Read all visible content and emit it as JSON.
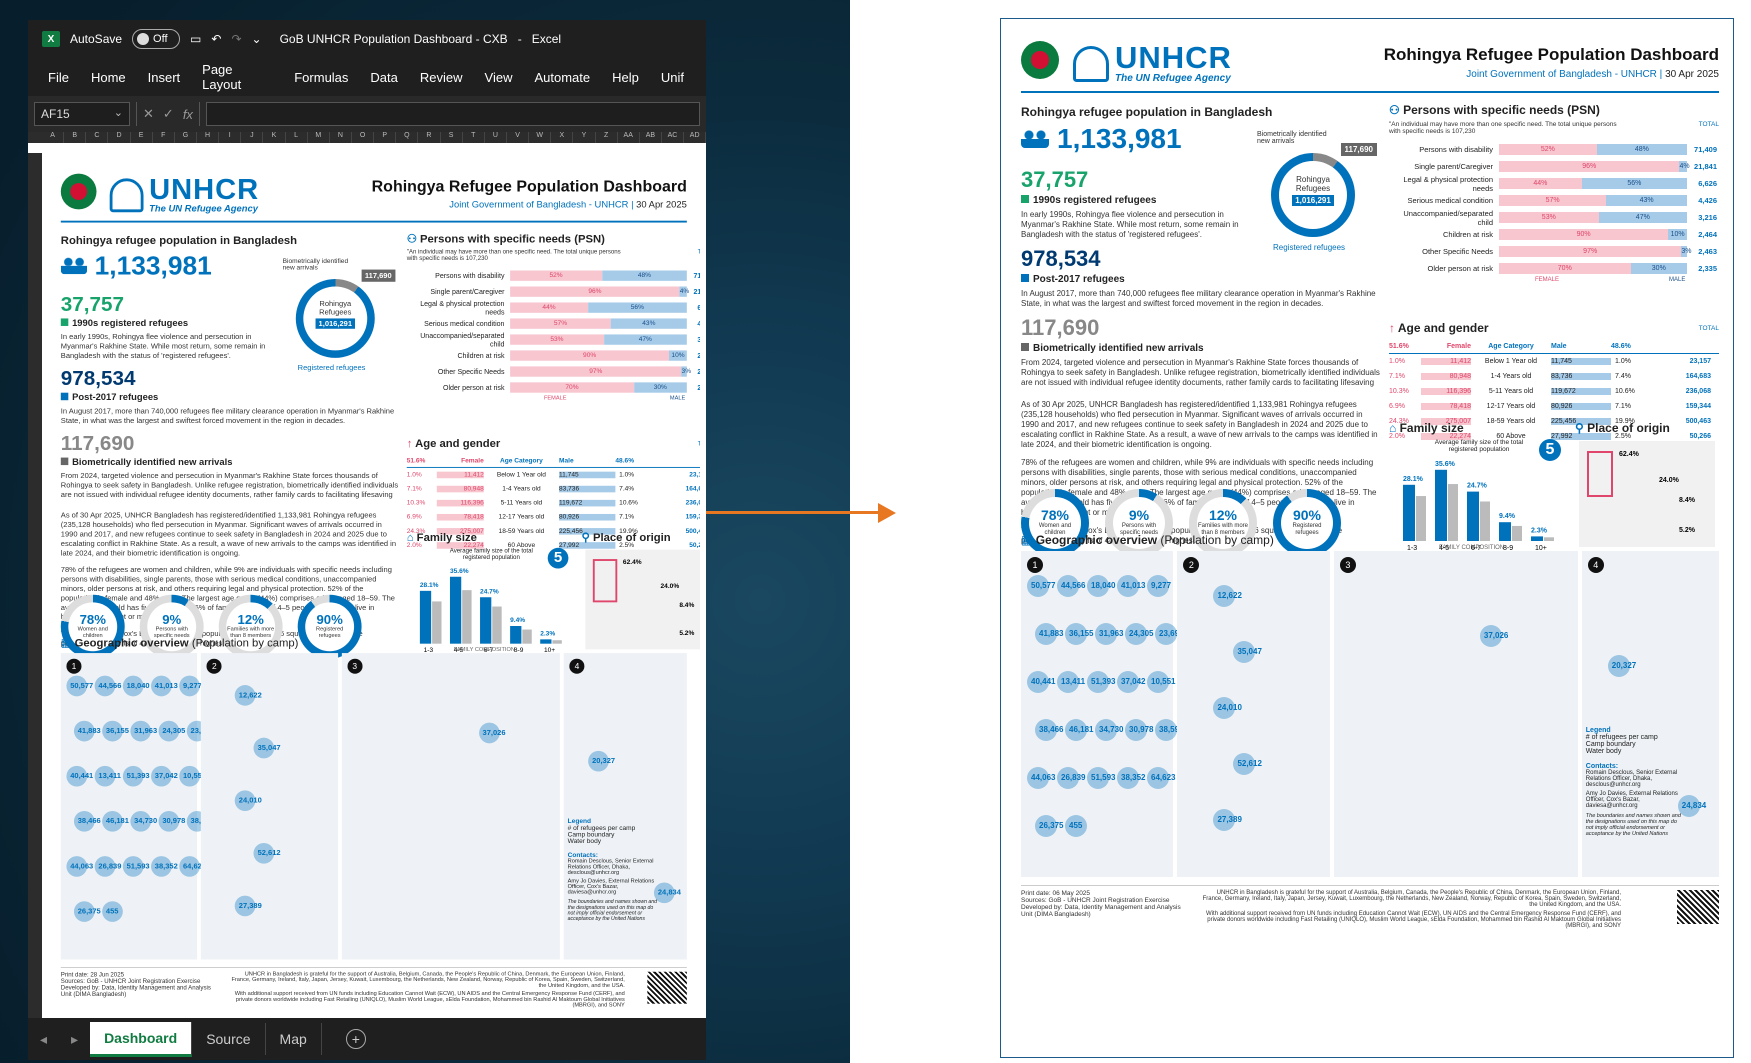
{
  "excel": {
    "app_icon": "excel-icon",
    "autosave_label": "AutoSave",
    "autosave_state": "Off",
    "doc_title": "GoB UNHCR Population Dashboard - CXB",
    "app_name": "Excel",
    "menu": [
      "File",
      "Home",
      "Insert",
      "Page Layout",
      "Formulas",
      "Data",
      "Review",
      "View",
      "Automate",
      "Help",
      "Unif"
    ],
    "name_box": "AF15",
    "fx": "fx",
    "columns": [
      "A",
      "B",
      "C",
      "D",
      "E",
      "F",
      "G",
      "H",
      "I",
      "J",
      "K",
      "L",
      "M",
      "N",
      "O",
      "P",
      "Q",
      "R",
      "S",
      "T",
      "U",
      "V",
      "W",
      "X",
      "Y",
      "Z",
      "AA",
      "AB",
      "AC",
      "AD"
    ],
    "tabs": [
      "Dashboard",
      "Source",
      "Map"
    ],
    "active_tab": "Dashboard"
  },
  "dash": {
    "org": "UNHCR",
    "org_sub": "The UN Refugee Agency",
    "title": "Rohingya Refugee Population Dashboard",
    "subtitle": "Joint Government of Bangladesh - UNHCR",
    "date": "30 Apr 2025",
    "pop_heading": "Rohingya refugee population in Bangladesh",
    "total": "1,133,981",
    "n1990": "37,757",
    "n1990_label": "1990s registered refugees",
    "n1990_text": "In early 1990s, Rohingya flee violence and persecution in Myanmar's Rakhine State. While most return, some remain in Bangladesh with the status of 'registered refugees'.",
    "n2017": "978,534",
    "n2017_label": "Post-2017 refugees",
    "n2017_text": "In August 2017, more than 740,000 refugees flee military clearance operation in Myanmar's Rakhine State, in what was the largest and swiftest forced movement in the region in decades.",
    "nnew": "117,690",
    "nnew_label": "Biometrically identified new arrivals",
    "nnew_text": "From 2024, targeted violence and persecution in Myanmar's Rakhine State forces thousands of Rohingya to seek safety in Bangladesh. Unlike refugee registration, biometrically identified individuals are not issued with individual refugee identity documents, rather family cards to facilitating lifesaving",
    "para1": "As of 30 Apr 2025, UNHCR Bangladesh has registered/identified 1,133,981 Rohingya refugees (235,128 households) who fled persecution in Myanmar. Significant waves of arrivals occurred in 1990 and 2017, and new refugees continue to seek safety in Bangladesh in 2024 and 2025 due to escalating conflict in Rakhine State. As a result, a wave of new arrivals to the camps was identified in late 2024, and their biometric identification is ongoing.",
    "para2": "78% of the refugees are women and children, while 9% are individuals with specific needs including persons with disabilities, single parents, those with serious medical conditions, unaccompanied minors, older persons at risk, and others requiring legal and physical protection. 52% of the population is female and 48% male. The largest age group (44%) comprises adults aged 18–59. The average household has five members: 36% of families consist of 4–5 people, while 12% live in households of eight or more.",
    "para3": "The 33 camps in Cox's Bazar are densely populated, covering 23.6 square kilometers. The population density is of 46,000 one of the highest in the world.",
    "donut_label": "Biometrically identified new arrivals",
    "donut_badge": "117,690",
    "donut_center1": "Rohingya",
    "donut_center2": "Refugees",
    "donut_center_num": "1,016,291",
    "donut_caption": "Registered refugees",
    "psn_heading": "Persons with specific needs (PSN)",
    "psn_note": "\"An individual may have more than one specific need. The total unique persons with specific needs is 107,230",
    "psn_total_hdr": "TOTAL",
    "psn_female": "FEMALE",
    "psn_male": "MALE",
    "psn": [
      {
        "label": "Persons with disability",
        "f": "52%",
        "m": "48%",
        "fv": 52,
        "total": "71,409"
      },
      {
        "label": "Single parent/Caregiver",
        "f": "96%",
        "m": "4%",
        "fv": 96,
        "total": "21,841"
      },
      {
        "label": "Legal & physical protection needs",
        "f": "44%",
        "m": "56%",
        "fv": 44,
        "total": "6,626"
      },
      {
        "label": "Serious medical condition",
        "f": "57%",
        "m": "43%",
        "fv": 57,
        "total": "4,426"
      },
      {
        "label": "Unaccompanied/separated child",
        "f": "53%",
        "m": "47%",
        "fv": 53,
        "total": "3,216"
      },
      {
        "label": "Children at risk",
        "f": "90%",
        "m": "10%",
        "fv": 90,
        "total": "2,464"
      },
      {
        "label": "Other Specific Needs",
        "f": "97%",
        "m": "3%",
        "fv": 97,
        "total": "2,463"
      },
      {
        "label": "Older person at risk",
        "f": "70%",
        "m": "30%",
        "fv": 70,
        "total": "2,335"
      }
    ],
    "age_heading": "Age and gender",
    "age_hdr": {
      "fpct": "51.6%",
      "female": "Female",
      "cat": "Age Category",
      "male": "Male",
      "mpct": "48.6%",
      "total": "TOTAL"
    },
    "age": [
      {
        "fp": "1.0%",
        "f": "11,412",
        "cat": "Below 1 Year old",
        "m": "11,745",
        "mp": "1.0%",
        "t": "23,157"
      },
      {
        "fp": "7.1%",
        "f": "80,948",
        "cat": "1-4 Years old",
        "m": "83,736",
        "mp": "7.4%",
        "t": "164,683"
      },
      {
        "fp": "10.3%",
        "f": "116,396",
        "cat": "5-11 Years old",
        "m": "119,672",
        "mp": "10.6%",
        "t": "236,068"
      },
      {
        "fp": "6.9%",
        "f": "78,418",
        "cat": "12-17 Years old",
        "m": "80,926",
        "mp": "7.1%",
        "t": "159,344"
      },
      {
        "fp": "24.3%",
        "f": "275,007",
        "cat": "18-59 Years old",
        "m": "225,456",
        "mp": "19.9%",
        "t": "500,463"
      },
      {
        "fp": "2.0%",
        "f": "22,274",
        "cat": "60 Above",
        "m": "27,992",
        "mp": "2.5%",
        "t": "50,266"
      }
    ],
    "kpis": [
      {
        "v": "78%",
        "l": "Women and children",
        "p": 78
      },
      {
        "v": "9%",
        "l": "Persons with specific needs",
        "p": 9
      },
      {
        "v": "12%",
        "l": "Families with more than 8 members",
        "p": 12
      },
      {
        "v": "90%",
        "l": "Registered refugees",
        "p": 90
      }
    ],
    "family_heading": "Family size",
    "family_note": "Average family size of the total registered population",
    "family_avg": "5",
    "family_axis": "FAMILY COMPOSITION",
    "origin_heading": "Place of origin",
    "origin_vals": [
      "62.4%",
      "24.0%",
      "8.4%",
      "5.2%"
    ],
    "geo_heading": "Geographic overview",
    "geo_sub": "(Population by camp)",
    "map_numbers": [
      "1",
      "2",
      "3",
      "4"
    ],
    "map1_labels": [
      "50,577",
      "44,566",
      "18,040",
      "41,013",
      "9,277",
      "41,883",
      "36,155",
      "31,963",
      "24,305",
      "23,696",
      "40,441",
      "13,411",
      "51,393",
      "37,042",
      "10,551",
      "38,466",
      "46,181",
      "34,730",
      "30,978",
      "38,594",
      "44,063",
      "26,839",
      "51,593",
      "38,352",
      "64,623",
      "26,375",
      "455"
    ],
    "map2_labels": [
      "12,622",
      "35,047",
      "24,010",
      "52,612",
      "27,389"
    ],
    "map3_labels": [
      "37,026"
    ],
    "map4_labels": [
      "20,327",
      "24,834"
    ],
    "legend_title": "Legend",
    "legend_items": [
      "# of refugees per camp",
      "Camp boundary",
      "Water body"
    ],
    "contacts_title": "Contacts:",
    "contact1": "Romain Desclous, Senior External Relations Officer, Dhaka, desclous@unhcr.org",
    "contact2": "Amy Jo Davies, External Relations Officer, Cox's Bazar, daviesa@unhcr.org",
    "disclaimer": "The boundaries and names shown and the designations used on this map do not imply official endorsement or acceptance by the United Nations",
    "print_label": "Print date:",
    "print_date": "28 Jun 2025",
    "print_date_right": "06 May 2025",
    "sources": "Sources: GoB - UNHCR Joint Registration Exercise",
    "developed": "Developed by: Data, Identity Management and Analysis Unit (DIMA Bangladesh)",
    "thanks": "UNHCR in Bangladesh is grateful for the support of Australia, Belgium, Canada, the People's Republic of China, Denmark, the European Union, Finland, France, Germany, Ireland, Italy, Japan, Jersey, Kuwait, Luxembourg, the Netherlands, New Zealand, Norway, Republic of Korea, Spain, Sweden, Switzerland, the United Kingdom, and the USA.",
    "thanks2": "With additional support received from UN funds including Education Cannot Wait (ECW), UN AIDS and the Central Emergency Response Fund (CERF), and private donors worldwide including Fast Retailing (UNIQLO), Muslim World League, sElda Foundation, Mohammed bin Rashid Al Maktoum Global Initiatives (MBRGI), and SONY"
  },
  "family_chart": {
    "type": "bar",
    "categories": [
      "1-3",
      "4-5",
      "6-7",
      "8-9",
      "10+"
    ],
    "values": [
      28.1,
      35.6,
      24.7,
      9.4,
      2.3
    ],
    "labels": [
      "28.1%",
      "35.6%",
      "24.7%",
      "9.4%",
      "2.3%"
    ]
  },
  "colors": {
    "blue": "#0072bc",
    "green": "#18a36b",
    "female": "#f7c6cf",
    "male": "#a6cbe8",
    "orange": "#e87722"
  }
}
